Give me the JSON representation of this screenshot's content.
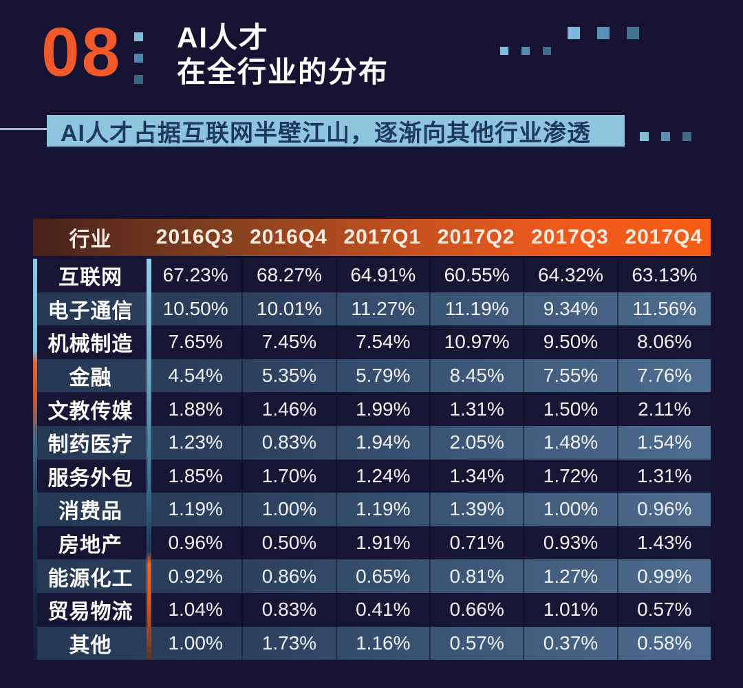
{
  "page": {
    "number": "08",
    "title_line1": "AI人才",
    "title_line2": "在全行业的分布",
    "subtitle": "AI人才占据互联网半壁江山，逐渐向其他行业渗透"
  },
  "chart_data": {
    "type": "table",
    "title": "AI人才在全行业的分布",
    "subtitle": "AI人才占据互联网半壁江山，逐渐向其他行业渗透",
    "columns": [
      "行业",
      "2016Q3",
      "2016Q4",
      "2017Q1",
      "2017Q2",
      "2017Q3",
      "2017Q4"
    ],
    "rows": [
      {
        "label": "互联网",
        "values": [
          "67.23%",
          "68.27%",
          "64.91%",
          "60.55%",
          "64.32%",
          "63.13%"
        ]
      },
      {
        "label": "电子通信",
        "values": [
          "10.50%",
          "10.01%",
          "11.27%",
          "11.19%",
          "9.34%",
          "11.56%"
        ]
      },
      {
        "label": "机械制造",
        "values": [
          "7.65%",
          "7.45%",
          "7.54%",
          "10.97%",
          "9.50%",
          "8.06%"
        ]
      },
      {
        "label": "金融",
        "values": [
          "4.54%",
          "5.35%",
          "5.79%",
          "8.45%",
          "7.55%",
          "7.76%"
        ]
      },
      {
        "label": "文教传媒",
        "values": [
          "1.88%",
          "1.46%",
          "1.99%",
          "1.31%",
          "1.50%",
          "2.11%"
        ]
      },
      {
        "label": "制药医疗",
        "values": [
          "1.23%",
          "0.83%",
          "1.94%",
          "2.05%",
          "1.48%",
          "1.54%"
        ]
      },
      {
        "label": "服务外包",
        "values": [
          "1.85%",
          "1.70%",
          "1.24%",
          "1.34%",
          "1.72%",
          "1.31%"
        ]
      },
      {
        "label": "消费品",
        "values": [
          "1.19%",
          "1.00%",
          "1.19%",
          "1.39%",
          "1.00%",
          "0.96%"
        ]
      },
      {
        "label": "房地产",
        "values": [
          "0.96%",
          "0.50%",
          "1.91%",
          "0.71%",
          "0.93%",
          "1.43%"
        ]
      },
      {
        "label": "能源化工",
        "values": [
          "0.92%",
          "0.86%",
          "0.65%",
          "0.81%",
          "1.27%",
          "0.99%"
        ]
      },
      {
        "label": "贸易物流",
        "values": [
          "1.04%",
          "0.83%",
          "0.41%",
          "0.66%",
          "1.01%",
          "0.57%"
        ]
      },
      {
        "label": "其他",
        "values": [
          "1.00%",
          "1.73%",
          "1.16%",
          "0.57%",
          "0.37%",
          "0.58%"
        ]
      }
    ]
  },
  "colors": {
    "background": "#151331",
    "accent_orange": "#F2592B",
    "header_gradient_left": "#45211B",
    "header_gradient_right": "#F65C15",
    "banner_background": "#8EC4DC",
    "banner_text": "#1D3A5E",
    "row_light_left": "#253853",
    "row_light_right": "#4E6D8F",
    "strip_blue": "#85CBE7",
    "strip_orange": "#E8622A"
  }
}
